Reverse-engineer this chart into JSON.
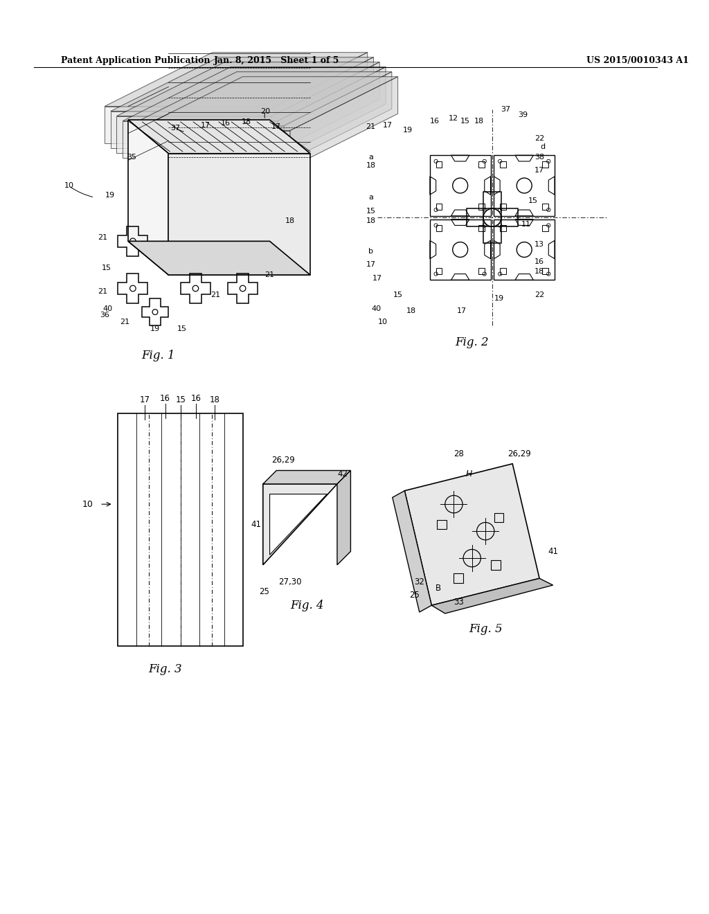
{
  "bg_color": "#ffffff",
  "header_left": "Patent Application Publication",
  "header_mid": "Jan. 8, 2015   Sheet 1 of 5",
  "header_right": "US 2015/0010343 A1",
  "fig1_caption": "Fig. 1",
  "fig2_caption": "Fig. 2",
  "fig3_caption": "Fig. 3",
  "fig4_caption": "Fig. 4",
  "fig5_caption": "Fig. 5"
}
